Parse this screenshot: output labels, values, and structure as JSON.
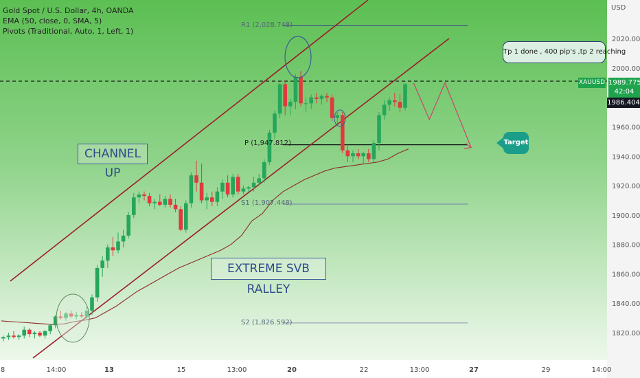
{
  "legend": {
    "line1": "Gold Spot / U.S. Dollar, 4h, OANDA",
    "line2": "EMA (50, close, 0, SMA, 5)",
    "line3": "Pivots (Traditional, Auto, 1, Left, 1)"
  },
  "price_axis": {
    "currency": "USD",
    "ticks": [
      "2020.000",
      "2000.000",
      "1980.000",
      "1960.000",
      "1940.000",
      "1920.000",
      "1900.000",
      "1880.000",
      "1860.000",
      "1840.000",
      "1820.000"
    ]
  },
  "time_axis": {
    "ticks": [
      "8",
      "14:00",
      "13",
      "15",
      "13:00",
      "20",
      "22",
      "13:00",
      "27",
      "29",
      "14:00"
    ]
  },
  "price_labels": {
    "symbol": "XAUUSD",
    "last_price": "1989.775",
    "countdown": "42:04",
    "dashed_price": "1986.404"
  },
  "annotations": {
    "channel": "CHANNEL UP",
    "rally": "EXTREME SVB RALLEY",
    "tp_note": "Tp 1 done , 400 pip's ,tp 2 reaching",
    "target": "Target"
  },
  "pivots": {
    "r1": "R1 (2,028.748)",
    "p": "P (1,947.812)",
    "s1": "S1 (1,907.448)",
    "s2": "S2 (1,826.592)"
  },
  "colors": {
    "background_green": "#5cbf53",
    "background_light": "#e9f5e7",
    "up_candle": "#26a65b",
    "down_candle": "#e0393e",
    "channel_line": "#9c1e2a",
    "ema_line": "#8e2a2a",
    "pivot_line": "#3a4a8c",
    "target_badge": "#1a9e8a"
  },
  "chart_data": {
    "type": "candlestick",
    "title": "Gold Spot / U.S. Dollar, 4h, OANDA",
    "ylim": [
      1811,
      2049
    ],
    "grid": false,
    "pivot_levels": {
      "R1": 2028.748,
      "P": 1947.812,
      "S1": 1907.448,
      "S2": 1826.592
    },
    "last_price": 1989.775,
    "dashed_price": 1986.404,
    "candles": [
      [
        1816,
        1818,
        1814,
        1817
      ],
      [
        1817,
        1820,
        1815,
        1818
      ],
      [
        1818,
        1821,
        1816,
        1817
      ],
      [
        1817,
        1819,
        1815,
        1818
      ],
      [
        1818,
        1824,
        1816,
        1822
      ],
      [
        1822,
        1823,
        1817,
        1819
      ],
      [
        1819,
        1821,
        1816,
        1820
      ],
      [
        1820,
        1821,
        1817,
        1818
      ],
      [
        1818,
        1822,
        1816,
        1821
      ],
      [
        1821,
        1826,
        1819,
        1825
      ],
      [
        1825,
        1832,
        1823,
        1831
      ],
      [
        1831,
        1835,
        1829,
        1830
      ],
      [
        1830,
        1834,
        1828,
        1833
      ],
      [
        1833,
        1835,
        1830,
        1831
      ],
      [
        1831,
        1834,
        1829,
        1832
      ],
      [
        1832,
        1834,
        1830,
        1831
      ],
      [
        1831,
        1838,
        1829,
        1835
      ],
      [
        1835,
        1846,
        1832,
        1844
      ],
      [
        1844,
        1866,
        1841,
        1864
      ],
      [
        1864,
        1872,
        1858,
        1869
      ],
      [
        1869,
        1880,
        1864,
        1878
      ],
      [
        1878,
        1885,
        1872,
        1876
      ],
      [
        1876,
        1888,
        1874,
        1882
      ],
      [
        1882,
        1890,
        1878,
        1886
      ],
      [
        1886,
        1902,
        1884,
        1900
      ],
      [
        1900,
        1915,
        1898,
        1912
      ],
      [
        1912,
        1916,
        1908,
        1914
      ],
      [
        1914,
        1916,
        1910,
        1913
      ],
      [
        1913,
        1915,
        1906,
        1908
      ],
      [
        1908,
        1911,
        1904,
        1909
      ],
      [
        1909,
        1914,
        1906,
        1907
      ],
      [
        1907,
        1913,
        1905,
        1911
      ],
      [
        1911,
        1914,
        1905,
        1907
      ],
      [
        1907,
        1911,
        1902,
        1904
      ],
      [
        1904,
        1906,
        1889,
        1890
      ],
      [
        1890,
        1910,
        1888,
        1908
      ],
      [
        1908,
        1929,
        1905,
        1927
      ],
      [
        1927,
        1937,
        1916,
        1922
      ],
      [
        1922,
        1935,
        1908,
        1910
      ],
      [
        1910,
        1915,
        1904,
        1912
      ],
      [
        1912,
        1916,
        1906,
        1909
      ],
      [
        1909,
        1919,
        1906,
        1916
      ],
      [
        1916,
        1924,
        1911,
        1922
      ],
      [
        1922,
        1927,
        1912,
        1914
      ],
      [
        1914,
        1928,
        1912,
        1926
      ],
      [
        1926,
        1928,
        1914,
        1916
      ],
      [
        1916,
        1920,
        1914,
        1918
      ],
      [
        1918,
        1920,
        1916,
        1919
      ],
      [
        1919,
        1926,
        1916,
        1922
      ],
      [
        1922,
        1928,
        1920,
        1925
      ],
      [
        1925,
        1938,
        1922,
        1936
      ],
      [
        1936,
        1958,
        1934,
        1956
      ],
      [
        1956,
        1971,
        1952,
        1969
      ],
      [
        1969,
        1990,
        1966,
        1989
      ],
      [
        1989,
        1992,
        1968,
        1974
      ],
      [
        1974,
        1979,
        1968,
        1977
      ],
      [
        1977,
        1996,
        1972,
        1994
      ],
      [
        1994,
        1998,
        1974,
        1976
      ],
      [
        1976,
        1980,
        1970,
        1976
      ],
      [
        1976,
        1982,
        1972,
        1980
      ],
      [
        1980,
        1983,
        1976,
        1979
      ],
      [
        1979,
        1982,
        1975,
        1981
      ],
      [
        1981,
        1983,
        1977,
        1980
      ],
      [
        1980,
        1982,
        1964,
        1966
      ],
      [
        1966,
        1970,
        1962,
        1968
      ],
      [
        1968,
        1970,
        1942,
        1944
      ],
      [
        1944,
        1948,
        1936,
        1940
      ],
      [
        1940,
        1944,
        1936,
        1942
      ],
      [
        1942,
        1945,
        1938,
        1940
      ],
      [
        1940,
        1943,
        1935,
        1942
      ],
      [
        1942,
        1945,
        1936,
        1938
      ],
      [
        1938,
        1951,
        1936,
        1949
      ],
      [
        1949,
        1970,
        1944,
        1968
      ],
      [
        1968,
        1978,
        1965,
        1975
      ],
      [
        1975,
        1980,
        1971,
        1978
      ],
      [
        1978,
        1983,
        1974,
        1977
      ],
      [
        1977,
        1982,
        1970,
        1973
      ],
      [
        1973,
        1990,
        1971,
        1989
      ]
    ],
    "ema_50": [
      [
        0,
        1828
      ],
      [
        2,
        1827.5
      ],
      [
        4,
        1827
      ],
      [
        6,
        1826.5
      ],
      [
        8,
        1826
      ],
      [
        10,
        1825.5
      ],
      [
        12,
        1826
      ],
      [
        14,
        1827.5
      ],
      [
        16,
        1828.5
      ],
      [
        18,
        1830
      ],
      [
        20,
        1834
      ],
      [
        22,
        1838
      ],
      [
        24,
        1843
      ],
      [
        26,
        1848
      ],
      [
        28,
        1852
      ],
      [
        30,
        1856
      ],
      [
        32,
        1860
      ],
      [
        34,
        1864
      ],
      [
        36,
        1867
      ],
      [
        38,
        1870
      ],
      [
        40,
        1873
      ],
      [
        42,
        1876
      ],
      [
        44,
        1880
      ],
      [
        46,
        1886
      ],
      [
        48,
        1896
      ],
      [
        50,
        1901
      ],
      [
        52,
        1910
      ],
      [
        54,
        1916
      ],
      [
        56,
        1920
      ],
      [
        58,
        1924
      ],
      [
        60,
        1927
      ],
      [
        62,
        1930
      ],
      [
        64,
        1932
      ],
      [
        66,
        1933
      ],
      [
        68,
        1934
      ],
      [
        70,
        1935
      ],
      [
        72,
        1936
      ],
      [
        74,
        1938
      ],
      [
        76,
        1942
      ],
      [
        78,
        1945
      ]
    ],
    "projection": [
      [
        79,
        1989.775
      ],
      [
        82,
        1965
      ],
      [
        85,
        1990
      ],
      [
        90,
        1946
      ]
    ]
  }
}
